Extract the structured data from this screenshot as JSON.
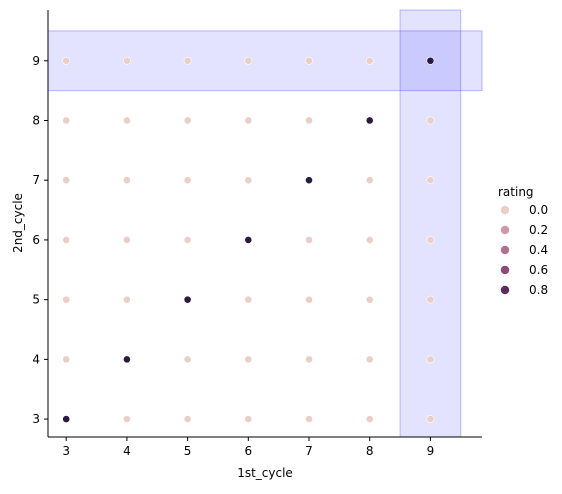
{
  "chart_data": {
    "type": "scatter",
    "title": "",
    "xlabel": "1st_cycle",
    "ylabel": "2nd_cycle",
    "xlim": [
      2.7,
      9.85
    ],
    "ylim": [
      2.7,
      9.85
    ],
    "x_ticks": [
      "3",
      "4",
      "5",
      "6",
      "7",
      "8",
      "9"
    ],
    "y_ticks": [
      "3",
      "4",
      "5",
      "6",
      "7",
      "8",
      "9"
    ],
    "grid": false,
    "legend": {
      "title": "rating",
      "placement": "right",
      "entries": [
        {
          "label": "0.0",
          "value": 0.0,
          "color": "#eacfc8"
        },
        {
          "label": "0.2",
          "value": 0.2,
          "color": "#d09aa5"
        },
        {
          "label": "0.4",
          "value": 0.4,
          "color": "#b2708f"
        },
        {
          "label": "0.6",
          "value": 0.6,
          "color": "#8c4a7d"
        },
        {
          "label": "0.8",
          "value": 0.8,
          "color": "#5a2d5e"
        }
      ]
    },
    "point_color_high": "#2a1a3e",
    "highlight_color": "#0000ff",
    "highlights": [
      {
        "axis": "x",
        "from": 8.5,
        "to": 9.5
      },
      {
        "axis": "y",
        "from": 8.5,
        "to": 9.5
      }
    ],
    "points": [
      {
        "x": 3,
        "y": 3,
        "rating": 1
      },
      {
        "x": 4,
        "y": 3,
        "rating": 0
      },
      {
        "x": 5,
        "y": 3,
        "rating": 0
      },
      {
        "x": 6,
        "y": 3,
        "rating": 0
      },
      {
        "x": 7,
        "y": 3,
        "rating": 0
      },
      {
        "x": 8,
        "y": 3,
        "rating": 0
      },
      {
        "x": 9,
        "y": 3,
        "rating": 0
      },
      {
        "x": 3,
        "y": 4,
        "rating": 0
      },
      {
        "x": 4,
        "y": 4,
        "rating": 1
      },
      {
        "x": 5,
        "y": 4,
        "rating": 0
      },
      {
        "x": 6,
        "y": 4,
        "rating": 0
      },
      {
        "x": 7,
        "y": 4,
        "rating": 0
      },
      {
        "x": 8,
        "y": 4,
        "rating": 0
      },
      {
        "x": 9,
        "y": 4,
        "rating": 0
      },
      {
        "x": 3,
        "y": 5,
        "rating": 0
      },
      {
        "x": 4,
        "y": 5,
        "rating": 0
      },
      {
        "x": 5,
        "y": 5,
        "rating": 1
      },
      {
        "x": 6,
        "y": 5,
        "rating": 0
      },
      {
        "x": 7,
        "y": 5,
        "rating": 0
      },
      {
        "x": 8,
        "y": 5,
        "rating": 0
      },
      {
        "x": 9,
        "y": 5,
        "rating": 0
      },
      {
        "x": 3,
        "y": 6,
        "rating": 0
      },
      {
        "x": 4,
        "y": 6,
        "rating": 0
      },
      {
        "x": 5,
        "y": 6,
        "rating": 0
      },
      {
        "x": 6,
        "y": 6,
        "rating": 1
      },
      {
        "x": 7,
        "y": 6,
        "rating": 0
      },
      {
        "x": 8,
        "y": 6,
        "rating": 0
      },
      {
        "x": 9,
        "y": 6,
        "rating": 0
      },
      {
        "x": 3,
        "y": 7,
        "rating": 0
      },
      {
        "x": 4,
        "y": 7,
        "rating": 0
      },
      {
        "x": 5,
        "y": 7,
        "rating": 0
      },
      {
        "x": 6,
        "y": 7,
        "rating": 0
      },
      {
        "x": 7,
        "y": 7,
        "rating": 1
      },
      {
        "x": 8,
        "y": 7,
        "rating": 0
      },
      {
        "x": 9,
        "y": 7,
        "rating": 0
      },
      {
        "x": 3,
        "y": 8,
        "rating": 0
      },
      {
        "x": 4,
        "y": 8,
        "rating": 0
      },
      {
        "x": 5,
        "y": 8,
        "rating": 0
      },
      {
        "x": 6,
        "y": 8,
        "rating": 0
      },
      {
        "x": 7,
        "y": 8,
        "rating": 0
      },
      {
        "x": 8,
        "y": 8,
        "rating": 1
      },
      {
        "x": 9,
        "y": 8,
        "rating": 0
      },
      {
        "x": 3,
        "y": 9,
        "rating": 0
      },
      {
        "x": 4,
        "y": 9,
        "rating": 0
      },
      {
        "x": 5,
        "y": 9,
        "rating": 0
      },
      {
        "x": 6,
        "y": 9,
        "rating": 0
      },
      {
        "x": 7,
        "y": 9,
        "rating": 0
      },
      {
        "x": 8,
        "y": 9,
        "rating": 0
      },
      {
        "x": 9,
        "y": 9,
        "rating": 1
      }
    ]
  }
}
